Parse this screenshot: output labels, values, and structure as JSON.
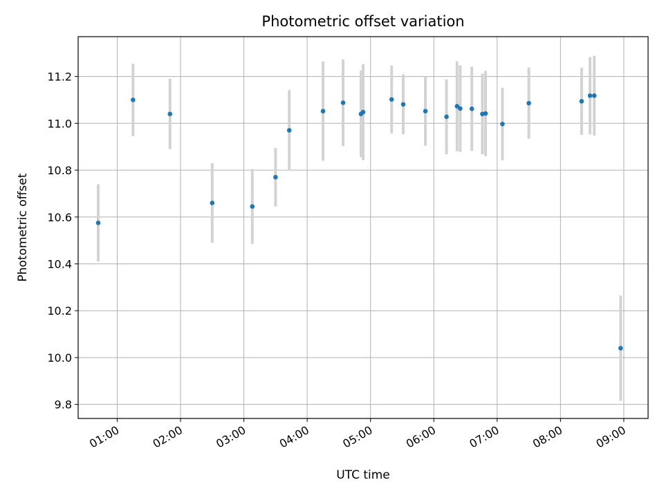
{
  "chart_data": {
    "type": "scatter",
    "title": "Photometric offset variation",
    "xlabel": "UTC time",
    "ylabel": "Photometric offset",
    "xlim": [
      "00:23",
      "09:23"
    ],
    "ylim": [
      9.74,
      11.37
    ],
    "xticks": [
      "01:00",
      "02:00",
      "03:00",
      "04:00",
      "05:00",
      "06:00",
      "07:00",
      "08:00",
      "09:00"
    ],
    "yticks": [
      9.8,
      10.0,
      10.2,
      10.4,
      10.6,
      10.8,
      11.0,
      11.2
    ],
    "grid": true,
    "colors": {
      "point": "#1f77b4",
      "error_bar": "#d3d3d3"
    },
    "series": [
      {
        "points": [
          {
            "t": "00:42",
            "y": 10.575,
            "err": 0.165
          },
          {
            "t": "01:15",
            "y": 11.1,
            "err": 0.155
          },
          {
            "t": "01:50",
            "y": 11.04,
            "err": 0.15
          },
          {
            "t": "02:30",
            "y": 10.66,
            "err": 0.17
          },
          {
            "t": "03:08",
            "y": 10.645,
            "err": 0.16
          },
          {
            "t": "03:30",
            "y": 10.77,
            "err": 0.125
          },
          {
            "t": "03:43",
            "y": 10.97,
            "err": 0.172
          },
          {
            "t": "04:15",
            "y": 11.052,
            "err": 0.212
          },
          {
            "t": "04:34",
            "y": 11.088,
            "err": 0.185
          },
          {
            "t": "04:51",
            "y": 11.04,
            "err": 0.185
          },
          {
            "t": "04:53",
            "y": 11.048,
            "err": 0.205
          },
          {
            "t": "05:20",
            "y": 11.102,
            "err": 0.145
          },
          {
            "t": "05:31",
            "y": 11.081,
            "err": 0.128
          },
          {
            "t": "05:52",
            "y": 11.052,
            "err": 0.148
          },
          {
            "t": "06:12",
            "y": 11.028,
            "err": 0.16
          },
          {
            "t": "06:22",
            "y": 11.073,
            "err": 0.192
          },
          {
            "t": "06:25",
            "y": 11.063,
            "err": 0.185
          },
          {
            "t": "06:36",
            "y": 11.062,
            "err": 0.18
          },
          {
            "t": "06:46",
            "y": 11.04,
            "err": 0.172
          },
          {
            "t": "06:49",
            "y": 11.042,
            "err": 0.182
          },
          {
            "t": "07:05",
            "y": 10.997,
            "err": 0.155
          },
          {
            "t": "07:30",
            "y": 11.086,
            "err": 0.152
          },
          {
            "t": "08:20",
            "y": 11.094,
            "err": 0.143
          },
          {
            "t": "08:28",
            "y": 11.118,
            "err": 0.165
          },
          {
            "t": "08:32",
            "y": 11.118,
            "err": 0.17
          },
          {
            "t": "08:57",
            "y": 10.04,
            "err": 0.225
          }
        ]
      }
    ]
  }
}
